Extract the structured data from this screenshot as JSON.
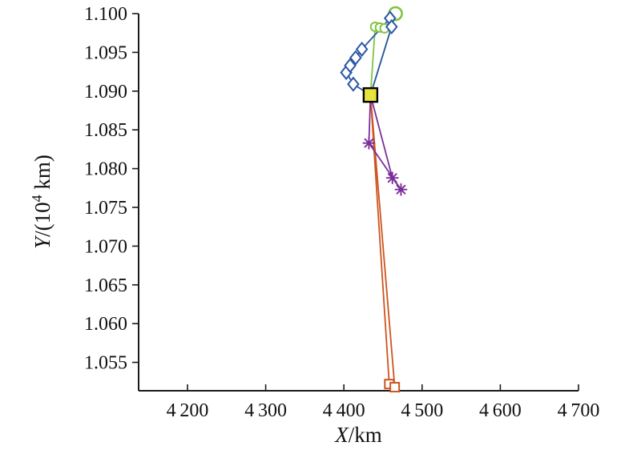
{
  "chart_data": {
    "type": "line",
    "title": "",
    "xlabel": {
      "italic": "X",
      "rest": "/km"
    },
    "ylabel": {
      "italic": "Y",
      "pre": "/(10",
      "sup": "4",
      "post": " km)"
    },
    "xlim": [
      4137.5,
      4700
    ],
    "ylim": [
      1.05134,
      1.1
    ],
    "grid": false,
    "legend": null,
    "x_ticks": [
      {
        "value": 4200,
        "label": "4 200"
      },
      {
        "value": 4300,
        "label": "4 300"
      },
      {
        "value": 4400,
        "label": "4 400"
      },
      {
        "value": 4500,
        "label": "4 500"
      },
      {
        "value": 4600,
        "label": "4 600"
      },
      {
        "value": 4700,
        "label": "4 700"
      }
    ],
    "y_ticks": [
      {
        "value": 1.055,
        "label": "1.055"
      },
      {
        "value": 1.06,
        "label": "1.060"
      },
      {
        "value": 1.065,
        "label": "1.065"
      },
      {
        "value": 1.07,
        "label": "1.070"
      },
      {
        "value": 1.075,
        "label": "1.075"
      },
      {
        "value": 1.08,
        "label": "1.080"
      },
      {
        "value": 1.085,
        "label": "1.085"
      },
      {
        "value": 1.09,
        "label": "1.090"
      },
      {
        "value": 1.095,
        "label": "1.095"
      },
      {
        "value": 1.1,
        "label": "1.100"
      }
    ],
    "start_point": {
      "x": 4434,
      "y": 1.0895,
      "marker": "filled-square",
      "fill": "#e6e33c",
      "border": "#000000",
      "size": 17
    },
    "series": [
      {
        "name": "trajectory-orange",
        "color": "#cd5420",
        "marker": "open-square",
        "closed_through_start": true,
        "points": [
          [
            4458,
            1.0522
          ],
          [
            4465,
            1.0518
          ]
        ]
      },
      {
        "name": "trajectory-purple",
        "color": "#7b2d9b",
        "marker": "asterisk",
        "closed_through_start": true,
        "points": [
          [
            4432,
            1.0833
          ],
          [
            4473,
            1.0773
          ],
          [
            4462,
            1.0788
          ]
        ]
      },
      {
        "name": "trajectory-green",
        "color": "#80c341",
        "marker": "circle",
        "closed_through_start": true,
        "points": [
          [
            4440,
            1.0983
          ],
          [
            4446,
            1.0982
          ],
          [
            4452,
            1.0981
          ],
          [
            4466,
            1.1
          ]
        ],
        "marker_sizes": [
          5.5,
          5.5,
          5.5,
          8
        ]
      },
      {
        "name": "trajectory-blue",
        "color": "#2a57a5",
        "marker": "diamond",
        "closed_through_start": true,
        "points": [
          [
            4412,
            1.0909
          ],
          [
            4403,
            1.0924
          ],
          [
            4408,
            1.0933
          ],
          [
            4415,
            1.0943
          ],
          [
            4423,
            1.0954
          ],
          [
            4459,
            1.0994
          ],
          [
            4461,
            1.0983
          ]
        ]
      }
    ]
  }
}
